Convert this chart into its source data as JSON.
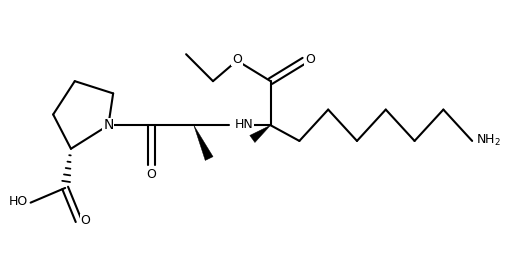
{
  "bg_color": "#ffffff",
  "line_color": "#000000",
  "line_width": 1.5,
  "text_color": "#000000",
  "font_size": 9,
  "fig_width": 5.05,
  "fig_height": 2.75,
  "dpi": 100,
  "xlim": [
    0,
    10
  ],
  "ylim": [
    0,
    5.5
  ]
}
